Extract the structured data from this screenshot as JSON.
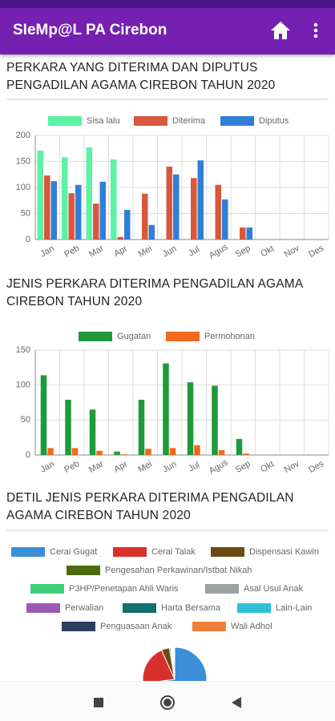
{
  "app_bar": {
    "title": "SIeMp@L PA Cirebon"
  },
  "chart_data": [
    {
      "type": "bar",
      "title": "PERKARA YANG DITERIMA DAN DIPUTUS PENGADILAN AGAMA CIREBON TAHUN 2020",
      "categories": [
        "Jan",
        "Peb",
        "Mar",
        "Apr",
        "Mei",
        "Jun",
        "Jul",
        "Agus",
        "Sep",
        "Okt",
        "Nov",
        "Des"
      ],
      "series": [
        {
          "name": "Sisa lalu",
          "color": "#5cf2a4",
          "values": [
            171,
            158,
            177,
            154,
            0,
            0,
            0,
            0,
            0,
            0,
            0,
            0
          ]
        },
        {
          "name": "Diterima",
          "color": "#d9573c",
          "values": [
            123,
            89,
            69,
            5,
            88,
            140,
            118,
            105,
            23,
            0,
            0,
            0
          ]
        },
        {
          "name": "Diputus",
          "color": "#2f7fd6",
          "values": [
            112,
            105,
            111,
            57,
            28,
            125,
            152,
            77,
            23,
            0,
            0,
            0
          ]
        }
      ],
      "ylim": [
        0,
        200
      ],
      "yticks": [
        0,
        50,
        100,
        150,
        200
      ],
      "grid": true
    },
    {
      "type": "bar",
      "title": "JENIS PERKARA DITERIMA PENGADILAN AGAMA CIREBON TAHUN 2020",
      "categories": [
        "Jan",
        "Peb",
        "Mar",
        "Apr",
        "Mei",
        "Jun",
        "Jul",
        "Agus",
        "Sep",
        "Okt",
        "Nov",
        "Des"
      ],
      "series": [
        {
          "name": "Gugatan",
          "color": "#1e9a3a",
          "values": [
            114,
            79,
            65,
            5,
            79,
            131,
            104,
            99,
            23,
            0,
            0,
            0
          ]
        },
        {
          "name": "Permohonan",
          "color": "#f26a1b",
          "values": [
            10,
            10,
            6,
            1,
            9,
            10,
            14,
            7,
            2,
            0,
            0,
            0
          ]
        }
      ],
      "ylim": [
        0,
        150
      ],
      "yticks": [
        0,
        50,
        100,
        150
      ],
      "grid": true
    },
    {
      "type": "pie",
      "title": "DETIL JENIS PERKARA DITERIMA PENGADILAN AGAMA CIREBON TAHUN 2020",
      "categories": [
        "Cerai Gugat",
        "Cerai Talak",
        "Dispensasi Kawin",
        "Pengesahan Perkawinan/Istbat Nikah",
        "P3HP/Penetapan Ahli Waris",
        "Asal Usul Anak",
        "Perwalian",
        "Harta Bersama",
        "Lain-Lain",
        "Penguasaan Anak",
        "Wali Adhol"
      ],
      "values": [
        540,
        150,
        30,
        5,
        3,
        2,
        2,
        3,
        3,
        1,
        1
      ],
      "colors": [
        "#3a8fd8",
        "#d9302c",
        "#6b4a12",
        "#4c6a10",
        "#3fcf7b",
        "#9aa3a3",
        "#9b59b6",
        "#117070",
        "#2fc0d8",
        "#2c3e5c",
        "#ef7f3a"
      ]
    }
  ]
}
